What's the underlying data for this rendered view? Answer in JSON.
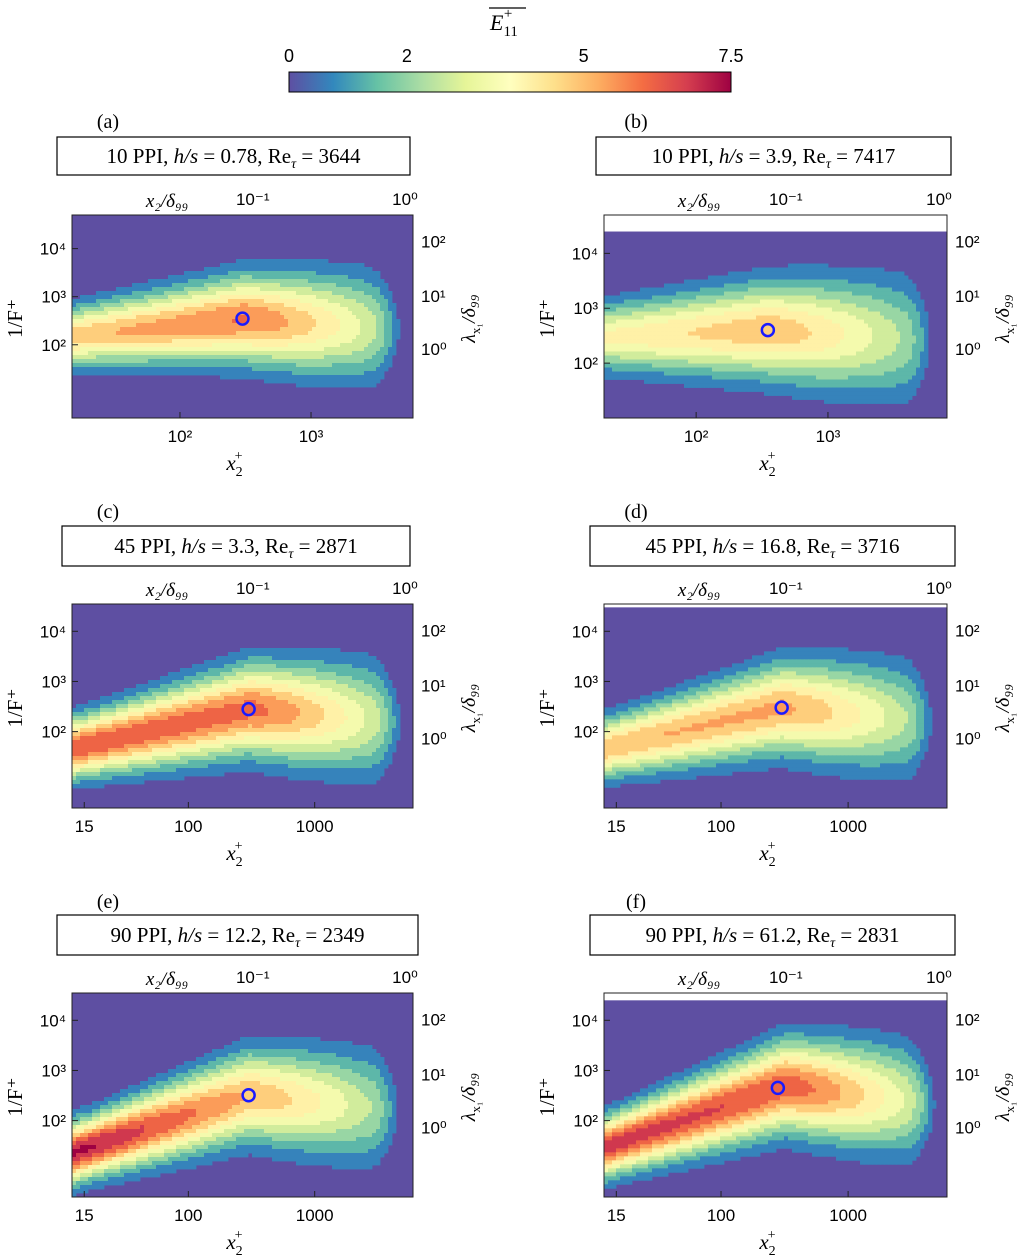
{
  "colorbar": {
    "label_base": "E",
    "label_sub": "11",
    "label_sup": "+",
    "ticks": [
      "0",
      "2",
      "5",
      "7.5"
    ],
    "tick_values": [
      0,
      2,
      5,
      7.5
    ],
    "range": [
      0,
      7.5
    ],
    "colormap": [
      "#5e4fa2",
      "#3288bd",
      "#66c2a5",
      "#abdda4",
      "#e6f598",
      "#ffffbf",
      "#fee08b",
      "#fdae61",
      "#f46d43",
      "#d53e4f",
      "#9e0142"
    ]
  },
  "axis_text": {
    "bottom_base": "x",
    "bottom_sub": "2",
    "bottom_sup": "+",
    "top_text": "x₂/δ₉₉",
    "left_text": "1/F⁺",
    "right_base": "λ",
    "right_sub": "x₁",
    "right_rest": "/δ₉₉"
  },
  "chart_data": [
    {
      "panel": "(a)",
      "box_parts": [
        "10 PPI, ",
        "h/s",
        " = 0.78, Re",
        "τ",
        " = 3644"
      ],
      "type": "heatmap",
      "xlim": [
        15,
        6000
      ],
      "ylim": [
        3,
        50000
      ],
      "xticks": [
        "10²",
        "10³"
      ],
      "xtick_values": [
        100,
        1000
      ],
      "yticks": [
        "10²",
        "10³",
        "10⁴"
      ],
      "ytick_values": [
        100,
        1000,
        10000
      ],
      "top_ticks": [
        "10⁻¹",
        "10⁰"
      ],
      "right_ticks": [
        "10⁰",
        "10¹",
        "10²"
      ],
      "data_ceiling": 50000,
      "ridge": {
        "x_inner": 15,
        "y_inner": 150,
        "x_peak": 300,
        "y_peak": 350,
        "x_outer": 6000,
        "y_outer": 200,
        "inner_peak": 5.2,
        "outer_peak": 6.2
      },
      "marker": {
        "x": 300,
        "y": 350
      }
    },
    {
      "panel": "(b)",
      "box_parts": [
        "10 PPI, ",
        "h/s",
        " = 3.9, Re",
        "τ",
        " = 7417"
      ],
      "type": "heatmap",
      "xlim": [
        20,
        8000
      ],
      "ylim": [
        10,
        50000
      ],
      "xticks": [
        "10²",
        "10³"
      ],
      "xtick_values": [
        100,
        1000
      ],
      "yticks": [
        "10²",
        "10³",
        "10⁴"
      ],
      "ytick_values": [
        100,
        1000,
        10000
      ],
      "top_ticks": [
        "10⁻¹",
        "10⁰"
      ],
      "right_ticks": [
        "10⁰",
        "10¹",
        "10²"
      ],
      "data_ceiling": 25000,
      "ridge": {
        "x_inner": 20,
        "y_inner": 300,
        "x_peak": 350,
        "y_peak": 400,
        "x_outer": 8000,
        "y_outer": 250,
        "inner_peak": 4.2,
        "outer_peak": 5.3
      },
      "marker": {
        "x": 350,
        "y": 400
      }
    },
    {
      "panel": "(c)",
      "box_parts": [
        "45 PPI, ",
        "h/s",
        " = 3.3, Re",
        "τ",
        " = 2871"
      ],
      "type": "heatmap",
      "xlim": [
        12,
        6000
      ],
      "ylim": [
        3,
        35000
      ],
      "xticks": [
        "15",
        "100",
        "1000"
      ],
      "xtick_values": [
        15,
        100,
        1000
      ],
      "yticks": [
        "10²",
        "10³",
        "10⁴"
      ],
      "ytick_values": [
        100,
        1000,
        10000
      ],
      "top_ticks": [
        "10⁻¹",
        "10⁰"
      ],
      "right_ticks": [
        "10⁰",
        "10¹",
        "10²"
      ],
      "data_ceiling": 35000,
      "ridge": {
        "x_inner": 14,
        "y_inner": 50,
        "x_peak": 300,
        "y_peak": 280,
        "x_outer": 6000,
        "y_outer": 150,
        "inner_peak": 6.8,
        "outer_peak": 6.4
      },
      "marker": {
        "x": 300,
        "y": 280
      }
    },
    {
      "panel": "(d)",
      "box_parts": [
        "45 PPI, ",
        "h/s",
        " = 16.8, Re",
        "τ",
        " = 3716"
      ],
      "type": "heatmap",
      "xlim": [
        12,
        6000
      ],
      "ylim": [
        3,
        35000
      ],
      "xticks": [
        "15",
        "100",
        "1000"
      ],
      "xtick_values": [
        15,
        100,
        1000
      ],
      "yticks": [
        "10²",
        "10³",
        "10⁴"
      ],
      "ytick_values": [
        100,
        1000,
        10000
      ],
      "top_ticks": [
        "10⁻¹",
        "10⁰"
      ],
      "right_ticks": [
        "10⁰",
        "10¹",
        "10²"
      ],
      "data_ceiling": 30000,
      "ridge": {
        "x_inner": 14,
        "y_inner": 50,
        "x_peak": 300,
        "y_peak": 300,
        "x_outer": 6000,
        "y_outer": 150,
        "inner_peak": 5.4,
        "outer_peak": 5.6
      },
      "marker": {
        "x": 300,
        "y": 300
      }
    },
    {
      "panel": "(e)",
      "box_parts": [
        "90 PPI, ",
        "h/s",
        " = 12.2, Re",
        "τ",
        " = 2349"
      ],
      "type": "heatmap",
      "xlim": [
        12,
        6000
      ],
      "ylim": [
        3,
        35000
      ],
      "xticks": [
        "15",
        "100",
        "1000"
      ],
      "xtick_values": [
        15,
        100,
        1000
      ],
      "yticks": [
        "10²",
        "10³",
        "10⁴"
      ],
      "ytick_values": [
        100,
        1000,
        10000
      ],
      "top_ticks": [
        "10⁻¹",
        "10⁰"
      ],
      "right_ticks": [
        "10⁰",
        "10¹",
        "10²"
      ],
      "data_ceiling": 35000,
      "ridge": {
        "x_inner": 17,
        "y_inner": 30,
        "x_peak": 300,
        "y_peak": 320,
        "x_outer": 6000,
        "y_outer": 150,
        "inner_peak": 7.6,
        "outer_peak": 5.4
      },
      "marker": {
        "x": 300,
        "y": 320
      }
    },
    {
      "panel": "(f)",
      "box_parts": [
        "90 PPI, ",
        "h/s",
        " = 61.2, Re",
        "τ",
        " = 2831"
      ],
      "type": "heatmap",
      "xlim": [
        12,
        6000
      ],
      "ylim": [
        3,
        35000
      ],
      "xticks": [
        "15",
        "100",
        "1000"
      ],
      "xtick_values": [
        15,
        100,
        1000
      ],
      "yticks": [
        "10²",
        "10³",
        "10⁴"
      ],
      "ytick_values": [
        100,
        1000,
        10000
      ],
      "top_ticks": [
        "10⁻¹",
        "10⁰"
      ],
      "right_ticks": [
        "10⁰",
        "10¹",
        "10²"
      ],
      "data_ceiling": 25000,
      "ridge": {
        "x_inner": 15,
        "y_inner": 35,
        "x_peak": 320,
        "y_peak": 500,
        "x_outer": 6000,
        "y_outer": 200,
        "inner_peak": 7.2,
        "outer_peak": 6.6
      },
      "marker": {
        "x": 280,
        "y": 450
      }
    }
  ]
}
